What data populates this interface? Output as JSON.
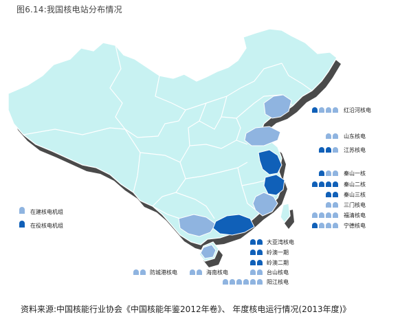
{
  "title": "图6.14:我国核电站分布情况",
  "source": "资料来源:中国核能行业协会《中国核能年鉴2012年卷》、 年度核电运行情况(2013年度)》",
  "colors": {
    "land": "#c8f2f2",
    "shadow": "#4a4a4a",
    "border": "#ffffff",
    "operating": "#1060b8",
    "construction": "#8fb4e0"
  },
  "legend": {
    "construction_label": "在建核电机组",
    "operating_label": "在役核电机组"
  },
  "plants": [
    {
      "name": "红沿河核电",
      "operating": 1,
      "construction": 3
    },
    {
      "name": "山东核电",
      "operating": 0,
      "construction": 2
    },
    {
      "name": "江苏核电",
      "operating": 2,
      "construction": 1
    },
    {
      "name": "秦山一核",
      "operating": 1,
      "construction": 2
    },
    {
      "name": "秦山二核",
      "operating": 4,
      "construction": 0
    },
    {
      "name": "秦山三核",
      "operating": 2,
      "construction": 0
    },
    {
      "name": "三门核电",
      "operating": 0,
      "construction": 2
    },
    {
      "name": "福清核电",
      "operating": 0,
      "construction": 4
    },
    {
      "name": "宁德核电",
      "operating": 1,
      "construction": 3
    },
    {
      "name": "大亚湾核电",
      "operating": 2,
      "construction": 0
    },
    {
      "name": "岭澳一期",
      "operating": 2,
      "construction": 0
    },
    {
      "name": "岭澳二期",
      "operating": 2,
      "construction": 0
    },
    {
      "name": "台山核电",
      "operating": 0,
      "construction": 2
    },
    {
      "name": "防城港核电",
      "operating": 0,
      "construction": 2
    },
    {
      "name": "海南核电",
      "operating": 0,
      "construction": 2
    },
    {
      "name": "阳江核电",
      "operating": 0,
      "construction": 6
    }
  ]
}
